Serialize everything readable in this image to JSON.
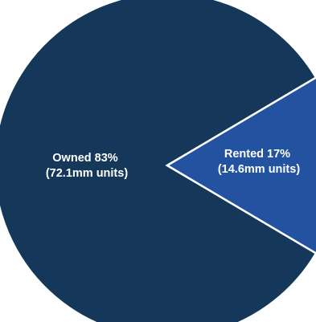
{
  "chart_data": {
    "type": "pie",
    "categories": [
      "Owned",
      "Rented"
    ],
    "values": [
      83,
      17
    ],
    "slices": [
      {
        "category": "Owned",
        "value": 83,
        "color": "#14375a",
        "label_line1": "Owned 83%",
        "label_line2": "(72.1mm units)"
      },
      {
        "category": "Rented",
        "value": 17,
        "color": "#2353a0",
        "label_line1": "Rented 17%",
        "label_line2": "(14.6mm units)"
      }
    ],
    "unit": "%",
    "title": "",
    "legend": "none",
    "slice_border_color": "#ffffff"
  }
}
